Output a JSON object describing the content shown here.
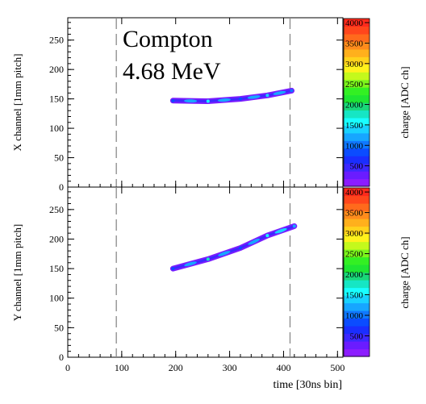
{
  "chart_data": {
    "type": "heatmap",
    "annotation_lines": [
      "Compton",
      "4.68 MeV"
    ],
    "x_axis": {
      "label": "time [30ns bin]",
      "range": [
        0,
        510
      ],
      "ticks": [
        0,
        100,
        200,
        300,
        400,
        500
      ]
    },
    "vertical_dashed_lines_x": [
      90,
      412
    ],
    "colorbar": {
      "label": "charge [ADC ch]",
      "range": [
        0,
        4100
      ],
      "ticks": [
        500,
        1000,
        1500,
        2000,
        2500,
        3000,
        3500,
        4000
      ]
    },
    "panels": [
      {
        "name": "X view",
        "y_label": "X channel [1mm pitch]",
        "y_range": [
          0,
          288
        ],
        "y_ticks": [
          0,
          50,
          100,
          150,
          200,
          250
        ],
        "track": {
          "points": [
            [
              195,
              147
            ],
            [
              260,
              146
            ],
            [
              320,
              150
            ],
            [
              370,
              156
            ],
            [
              415,
              164
            ]
          ],
          "charge_along_track": [
            800,
            1600,
            900,
            1400,
            1100
          ]
        }
      },
      {
        "name": "Y view",
        "y_label": "Y channel [1mm pitch]",
        "y_range": [
          0,
          288
        ],
        "y_ticks": [
          0,
          50,
          100,
          150,
          200,
          250
        ],
        "track": {
          "points": [
            [
              195,
              150
            ],
            [
              260,
              166
            ],
            [
              320,
              185
            ],
            [
              370,
              206
            ],
            [
              420,
              222
            ]
          ],
          "charge_along_track": [
            900,
            1700,
            800,
            1500,
            1200
          ]
        }
      }
    ]
  }
}
